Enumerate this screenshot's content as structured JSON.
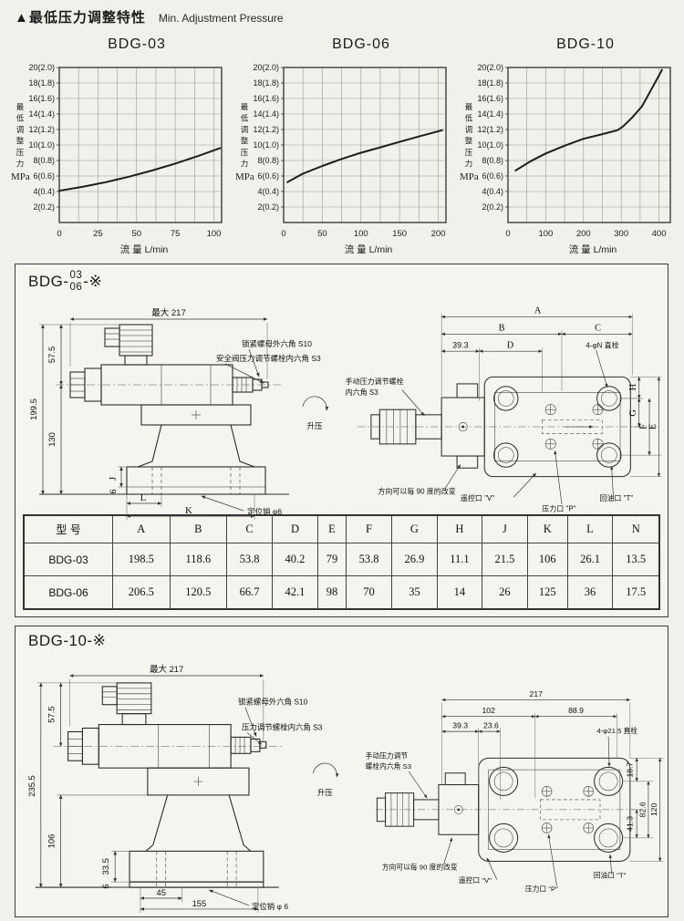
{
  "header": {
    "title_cn": "▲最低压力调整特性",
    "title_en": "Min. Adjustment Pressure"
  },
  "chart_data": [
    {
      "type": "line",
      "title": "BDG-03",
      "xlabel": "流  量  L/min",
      "ylabel": "最低调整压力",
      "ylabel_unit": "MPa",
      "xlim": [
        0,
        105
      ],
      "ylim": [
        0,
        20
      ],
      "x_grid_step": 12.5,
      "y_grid_step": 2,
      "x_ticks": [
        0,
        25,
        50,
        75,
        100
      ],
      "y_tick_labels": [
        "20(2.0)",
        "18(1.8)",
        "16(1.6)",
        "14(1.4)",
        "12(1.2)",
        "10(1.0)",
        "8(0.8)",
        "6(0.6)",
        "4(0.4)",
        "2(0.2)"
      ],
      "points": [
        [
          0,
          4.1
        ],
        [
          15,
          4.6
        ],
        [
          30,
          5.2
        ],
        [
          45,
          5.9
        ],
        [
          60,
          6.7
        ],
        [
          75,
          7.6
        ],
        [
          90,
          8.6
        ],
        [
          104,
          9.6
        ]
      ]
    },
    {
      "type": "line",
      "title": "BDG-06",
      "xlabel": "流  量  L/min",
      "ylabel": "最低调整压力",
      "ylabel_unit": "MPa",
      "xlim": [
        0,
        210
      ],
      "ylim": [
        0,
        20
      ],
      "x_grid_step": 25,
      "y_grid_step": 2,
      "x_ticks": [
        0,
        50,
        100,
        150,
        200
      ],
      "y_tick_labels": [
        "20(2.0)",
        "18(1.8)",
        "16(1.6)",
        "14(1.4)",
        "12(1.2)",
        "10(1.0)",
        "8(0.8)",
        "6(0.6)",
        "4(0.4)",
        "2(0.2)"
      ],
      "points": [
        [
          5,
          5.2
        ],
        [
          25,
          6.3
        ],
        [
          50,
          7.3
        ],
        [
          75,
          8.2
        ],
        [
          100,
          9.0
        ],
        [
          125,
          9.7
        ],
        [
          150,
          10.4
        ],
        [
          175,
          11.1
        ],
        [
          205,
          11.9
        ]
      ]
    },
    {
      "type": "line",
      "title": "BDG-10",
      "xlabel": "流  量  L/min",
      "ylabel": "最低调整压力",
      "ylabel_unit": "MPa",
      "xlim": [
        0,
        430
      ],
      "ylim": [
        0,
        20
      ],
      "x_grid_step": 50,
      "y_grid_step": 2,
      "x_ticks": [
        0,
        100,
        200,
        300,
        400
      ],
      "y_tick_labels": [
        "20(2.0)",
        "18(1.8)",
        "16(1.6)",
        "14(1.4)",
        "12(1.2)",
        "10(1.0)",
        "8(0.8)",
        "6(0.6)",
        "4(0.4)",
        "2(0.2)"
      ],
      "points": [
        [
          20,
          6.7
        ],
        [
          60,
          7.9
        ],
        [
          100,
          8.9
        ],
        [
          150,
          9.9
        ],
        [
          200,
          10.8
        ],
        [
          250,
          11.4
        ],
        [
          290,
          11.9
        ],
        [
          305,
          12.4
        ],
        [
          330,
          13.6
        ],
        [
          355,
          15.0
        ],
        [
          380,
          17.2
        ],
        [
          408,
          19.7
        ]
      ]
    }
  ],
  "s1": {
    "model_prefix": "BDG-",
    "model_top": "03",
    "model_bottom": "06",
    "model_suffix": "-※",
    "side": {
      "dim_max217": "最大 217",
      "dim_57_5": "57.5",
      "dim_199_5": "199.5",
      "dim_130": "130",
      "dim_J": "J",
      "dim_6": "6",
      "dim_L": "L",
      "dim_K": "K",
      "ann_locknut": "锁紧螺母外六角 S10",
      "ann_safety": "安全阀压力调节螺栓内六角 S3",
      "ann_raise": "升压",
      "ann_pin": "定位销 φ6"
    },
    "top": {
      "dim_A": "A",
      "dim_B": "B",
      "dim_C": "C",
      "dim_D": "D",
      "dim_39_3": "39.3",
      "dim_E": "E",
      "dim_F": "F",
      "dim_G": "G",
      "dim_H": "H",
      "ann_bolt": "4-φN 直栓",
      "ann_manual1": "手动压力调节螺栓",
      "ann_manual2": "内六角 S3",
      "ann_rotate": "方向可以每 90 度的改变",
      "port_v": "遥控口 \"V\"",
      "port_p": "压力口 \"P\"",
      "port_t": "回油口 \"T\""
    }
  },
  "dim_table": {
    "headers": [
      "型  号",
      "A",
      "B",
      "C",
      "D",
      "E",
      "F",
      "G",
      "H",
      "J",
      "K",
      "L",
      "N"
    ],
    "rows": [
      [
        "BDG-03",
        "198.5",
        "118.6",
        "53.8",
        "40.2",
        "79",
        "53.8",
        "26.9",
        "11.1",
        "21.5",
        "106",
        "26.1",
        "13.5"
      ],
      [
        "BDG-06",
        "206.5",
        "120.5",
        "66.7",
        "42.1",
        "98",
        "70",
        "35",
        "14",
        "26",
        "125",
        "36",
        "17.5"
      ]
    ]
  },
  "s2": {
    "model": "BDG-10-※",
    "side": {
      "dim_max217": "最大 217",
      "dim_57_5": "57.5",
      "dim_235_5": "235.5",
      "dim_106": "106",
      "dim_33_5": "33.5",
      "dim_6": "6",
      "dim_45": "45",
      "dim_155": "155",
      "ann_locknut": "锁紧螺母外六角 S10",
      "ann_adjust": "压力调节螺栓内六角 S3",
      "ann_raise": "升压",
      "ann_pin": "定位销 φ 6"
    },
    "top": {
      "dim_217": "217",
      "dim_102": "102",
      "dim_88_9": "88.9",
      "dim_39_3": "39.3",
      "dim_23_6": "23.6",
      "dim_18_7": "18.7",
      "dim_41_3": "41.3",
      "dim_82_6": "82.6",
      "dim_120": "120",
      "ann_bolt": "4-φ21.5 直栓",
      "ann_manual1": "手动压力调节",
      "ann_manual2": "螺栓内六角 S3",
      "ann_rotate": "方向可以每 90 度的改变",
      "port_v": "遥控口 \"V\"",
      "port_p": "压力口 \"P\"",
      "port_t": "回油口 \"T\""
    }
  }
}
